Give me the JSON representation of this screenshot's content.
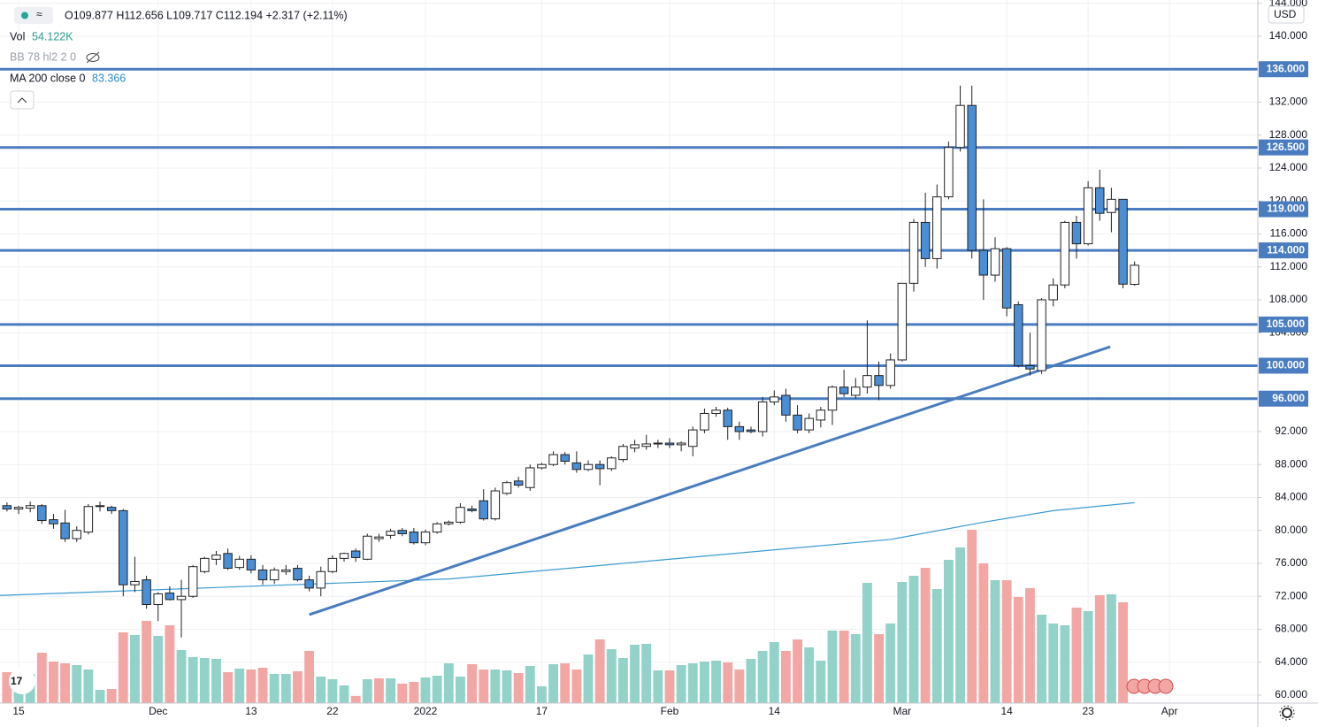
{
  "chart_data": {
    "type": "candlestick",
    "header": {
      "ohlc": "O109.877 H112.656 L109.717 C112.194 +2.317 (+2.11%)",
      "vol_label": "Vol",
      "vol_value": "54.122K",
      "bb_label": "BB 78 hl2 2 0",
      "ma_label": "MA 200 close 0",
      "ma_value": "83.366",
      "currency": "USD"
    },
    "xlim": [
      -0.6,
      107.6
    ],
    "ylim": [
      59.03,
      144.4
    ],
    "volume_lim": [
      0,
      397.5
    ],
    "up_color": "#ffffff",
    "down_color": "#4a8fd6",
    "wick_color": "#222222",
    "volume_up_color": "#93d2c9",
    "volume_down_color": "#f2a7a5",
    "level_color": "#4a7cc0",
    "ma_color": "#3b9bd1",
    "grid": true,
    "yticks": [
      {
        "value": 60,
        "label": "60.000"
      },
      {
        "value": 64,
        "label": "64.000"
      },
      {
        "value": 68,
        "label": "68.000"
      },
      {
        "value": 72,
        "label": "72.000"
      },
      {
        "value": 76,
        "label": "76.000"
      },
      {
        "value": 80,
        "label": "80.000"
      },
      {
        "value": 84,
        "label": "84.000"
      },
      {
        "value": 88,
        "label": "88.000"
      },
      {
        "value": 92,
        "label": "92.000"
      },
      {
        "value": 104,
        "label": "104.000"
      },
      {
        "value": 108,
        "label": "108.000"
      },
      {
        "value": 112,
        "label": "112.000"
      },
      {
        "value": 116,
        "label": "116.000"
      },
      {
        "value": 120,
        "label": "120.000"
      },
      {
        "value": 124,
        "label": "124.000"
      },
      {
        "value": 128,
        "label": "128.000"
      },
      {
        "value": 132,
        "label": "132.000"
      },
      {
        "value": 140,
        "label": "140.000"
      },
      {
        "value": 144,
        "label": "144.000"
      }
    ],
    "xticks": [
      {
        "value": 1,
        "label": "15"
      },
      {
        "value": 13,
        "label": "Dec"
      },
      {
        "value": 21,
        "label": "13"
      },
      {
        "value": 28,
        "label": "22"
      },
      {
        "value": 36,
        "label": "2022"
      },
      {
        "value": 46,
        "label": "17"
      },
      {
        "value": 57,
        "label": "Feb"
      },
      {
        "value": 66,
        "label": "14"
      },
      {
        "value": 77,
        "label": "Mar"
      },
      {
        "value": 86,
        "label": "14"
      },
      {
        "value": 93,
        "label": "23"
      },
      {
        "value": 100,
        "label": "Apr"
      }
    ],
    "levels": [
      {
        "value": 136,
        "label": "136.000"
      },
      {
        "value": 126.5,
        "label": "126.500"
      },
      {
        "value": 119,
        "label": "119.000"
      },
      {
        "value": 114,
        "label": "114.000"
      },
      {
        "value": 105,
        "label": "105.000"
      },
      {
        "value": 100,
        "label": "100.000"
      },
      {
        "value": 96,
        "label": "96.000"
      }
    ],
    "trendline": {
      "x": [
        26.0,
        94.9
      ],
      "y": [
        69.77,
        102.3
      ]
    },
    "ma": {
      "x": [
        -0.6,
        38,
        76,
        84,
        90,
        97
      ],
      "values": [
        72.1,
        74.1,
        78.9,
        81.0,
        82.4,
        83.366
      ]
    },
    "open": [
      83.0,
      82.6,
      82.7,
      83.0,
      81.3,
      80.9,
      79.0,
      79.8,
      82.9,
      82.8,
      82.4,
      73.4,
      74.0,
      71.0,
      72.4,
      71.6,
      72.0,
      75.0,
      76.5,
      77.2,
      75.5,
      76.5,
      75.2,
      74.0,
      75.0,
      75.4,
      74.0,
      73.0,
      75.0,
      76.6,
      77.5,
      76.5,
      79.0,
      79.4,
      80.0,
      79.8,
      78.5,
      79.8,
      80.8,
      81.0,
      82.6,
      83.6,
      81.4,
      84.5,
      86.0,
      85.2,
      87.6,
      88.0,
      89.2,
      88.2,
      87.4,
      88.0,
      87.5,
      88.6,
      90.0,
      90.2,
      90.5,
      90.6,
      90.4,
      90.2,
      92.2,
      94.2,
      94.6,
      92.6,
      92.2,
      92.0,
      95.6,
      96.4,
      94.0,
      92.2,
      93.4,
      94.6,
      97.4,
      96.4,
      97.4,
      98.8,
      97.6,
      100.7,
      110.0,
      117.4,
      113.0,
      120.5,
      126.5,
      131.6,
      114.0,
      111.0,
      114.2,
      107.4,
      100.0,
      99.4,
      108.0,
      109.8,
      117.4,
      114.8,
      121.6,
      118.6,
      120.2,
      109.877
    ],
    "high": [
      83.4,
      83.0,
      83.5,
      83.2,
      82.0,
      82.5,
      80.5,
      83.2,
      83.5,
      83.0,
      82.6,
      76.8,
      74.5,
      72.5,
      73.2,
      74.0,
      75.8,
      76.8,
      77.5,
      77.8,
      76.9,
      77.0,
      75.8,
      75.5,
      75.8,
      75.8,
      74.5,
      75.6,
      77.0,
      77.3,
      77.8,
      79.6,
      79.6,
      80.2,
      80.3,
      80.3,
      80.1,
      81.0,
      81.2,
      83.3,
      83.0,
      85.0,
      85.2,
      86.0,
      86.5,
      88.0,
      88.2,
      89.6,
      89.5,
      89.6,
      88.5,
      88.5,
      89.0,
      90.5,
      91.0,
      91.6,
      91.0,
      91.2,
      90.8,
      92.6,
      94.8,
      95.0,
      94.9,
      93.2,
      92.6,
      96.2,
      97.0,
      97.2,
      95.2,
      94.2,
      95.0,
      97.6,
      99.5,
      98.5,
      105.5,
      100.5,
      101.5,
      110.0,
      117.8,
      121.0,
      122.0,
      127.2,
      134.0,
      134.0,
      120.2,
      115.6,
      114.4,
      107.8,
      104.0,
      108.2,
      110.6,
      117.6,
      118.2,
      122.4,
      123.8,
      121.6,
      120.2,
      112.656
    ],
    "low": [
      82.3,
      82.0,
      82.2,
      80.8,
      80.2,
      78.6,
      78.6,
      79.5,
      82.3,
      82.0,
      72.0,
      72.5,
      70.5,
      69.0,
      71.5,
      67.0,
      71.8,
      74.8,
      75.8,
      75.2,
      75.2,
      74.8,
      73.4,
      73.5,
      74.6,
      73.8,
      72.6,
      72.0,
      74.8,
      76.2,
      76.2,
      76.4,
      78.6,
      79.0,
      79.3,
      78.3,
      78.2,
      79.6,
      80.6,
      80.8,
      82.2,
      81.2,
      81.2,
      84.3,
      85.2,
      84.8,
      87.4,
      87.8,
      88.0,
      87.0,
      87.2,
      85.5,
      87.2,
      88.3,
      89.5,
      89.8,
      90.0,
      90.0,
      89.6,
      89.0,
      91.8,
      93.8,
      91.0,
      91.0,
      91.8,
      91.4,
      95.2,
      93.2,
      91.8,
      91.8,
      92.5,
      92.8,
      96.2,
      96.0,
      96.6,
      95.8,
      97.2,
      100.5,
      109.0,
      112.0,
      111.8,
      120.2,
      126.0,
      113.0,
      108.0,
      110.2,
      106.0,
      99.8,
      98.8,
      99.0,
      107.2,
      109.4,
      113.0,
      114.6,
      117.6,
      116.2,
      109.4,
      109.717
    ],
    "close": [
      82.6,
      82.8,
      83.0,
      81.2,
      80.8,
      79.0,
      80.0,
      82.9,
      83.0,
      82.4,
      73.4,
      73.8,
      71.0,
      72.3,
      71.6,
      72.0,
      75.6,
      76.6,
      77.0,
      75.4,
      76.5,
      75.2,
      74.0,
      75.2,
      75.2,
      74.0,
      73.0,
      75.0,
      76.6,
      77.2,
      76.7,
      79.3,
      79.2,
      79.9,
      79.6,
      78.5,
      79.8,
      80.8,
      81.0,
      82.8,
      82.4,
      81.4,
      84.8,
      85.8,
      85.5,
      87.6,
      88.0,
      89.2,
      88.4,
      87.4,
      88.0,
      87.5,
      88.8,
      90.2,
      90.4,
      90.5,
      90.6,
      90.4,
      90.6,
      92.2,
      94.2,
      94.6,
      92.6,
      92.0,
      92.0,
      95.6,
      96.2,
      94.0,
      92.2,
      93.6,
      94.6,
      97.4,
      96.6,
      97.4,
      98.8,
      97.6,
      100.7,
      110.0,
      117.4,
      113.0,
      120.5,
      126.5,
      131.6,
      114.0,
      111.0,
      114.2,
      107.0,
      100.0,
      99.6,
      108.0,
      109.8,
      117.4,
      114.8,
      121.6,
      118.5,
      120.2,
      109.9,
      112.194
    ],
    "volume": [
      17.5,
      17.5,
      16.5,
      28.5,
      23.5,
      22.5,
      21.5,
      19,
      7.5,
      8,
      40,
      38.5,
      46.5,
      38,
      44,
      30,
      26,
      25.5,
      25,
      17.5,
      19.5,
      19,
      20,
      16.5,
      16.5,
      18,
      29.5,
      15,
      13.5,
      10,
      4,
      13.5,
      14,
      14,
      11,
      12,
      14.5,
      15.5,
      22.5,
      15,
      22,
      19,
      19,
      18.5,
      17,
      21,
      9.5,
      22,
      22.5,
      19,
      27.5,
      36,
      30.5,
      25.5,
      33,
      33.5,
      18.5,
      18.5,
      21.5,
      22.5,
      23.5,
      24,
      23,
      19,
      25,
      29.5,
      34.5,
      29.5,
      36,
      31.5,
      24,
      41,
      41,
      39,
      68,
      39,
      45,
      68.5,
      72,
      76.5,
      64.5,
      81,
      88,
      98,
      79,
      69.5,
      69.5,
      60,
      65,
      50,
      45,
      44,
      54,
      52,
      61,
      61.5,
      57,
      null
    ]
  }
}
